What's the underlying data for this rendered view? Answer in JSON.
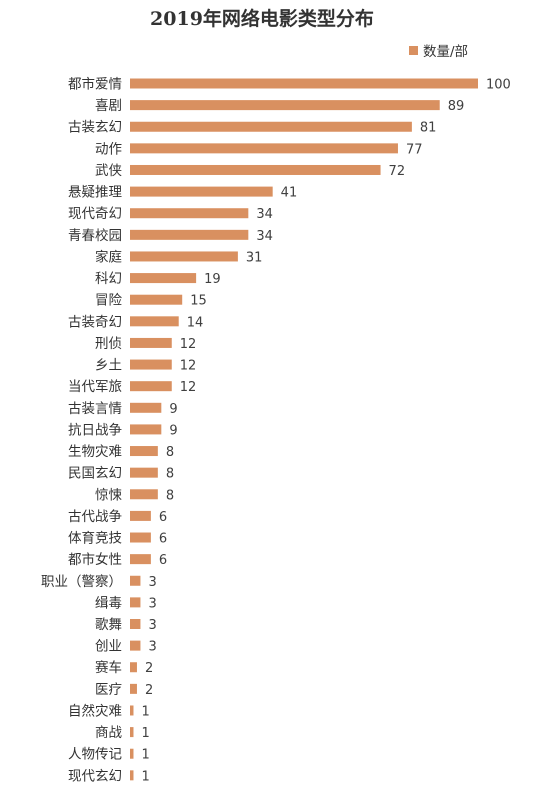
{
  "chart_data": {
    "type": "bar",
    "orientation": "horizontal",
    "title": "2019年网络电影类型分布",
    "legend_position": "top-right",
    "grid": false,
    "bar_color": "#D99060",
    "xlim": [
      0,
      100
    ],
    "series": [
      {
        "name": "数量/部",
        "values": [
          100,
          89,
          81,
          77,
          72,
          41,
          34,
          34,
          31,
          19,
          15,
          14,
          12,
          12,
          12,
          9,
          9,
          8,
          8,
          8,
          6,
          6,
          6,
          3,
          3,
          3,
          3,
          2,
          2,
          1,
          1,
          1,
          1
        ]
      }
    ],
    "categories": [
      "都市爱情",
      "喜剧",
      "古装玄幻",
      "动作",
      "武侠",
      "悬疑推理",
      "现代奇幻",
      "青春校园",
      "家庭",
      "科幻",
      "冒险",
      "古装奇幻",
      "刑侦",
      "乡土",
      "当代军旅",
      "古装言情",
      "抗日战争",
      "生物灾难",
      "民国玄幻",
      "惊悚",
      "古代战争",
      "体育竞技",
      "都市女性",
      "职业（警察）",
      "缉毒",
      "歌舞",
      "创业",
      "赛车",
      "医疗",
      "自然灾难",
      "商战",
      "人物传记",
      "现代玄幻"
    ]
  }
}
